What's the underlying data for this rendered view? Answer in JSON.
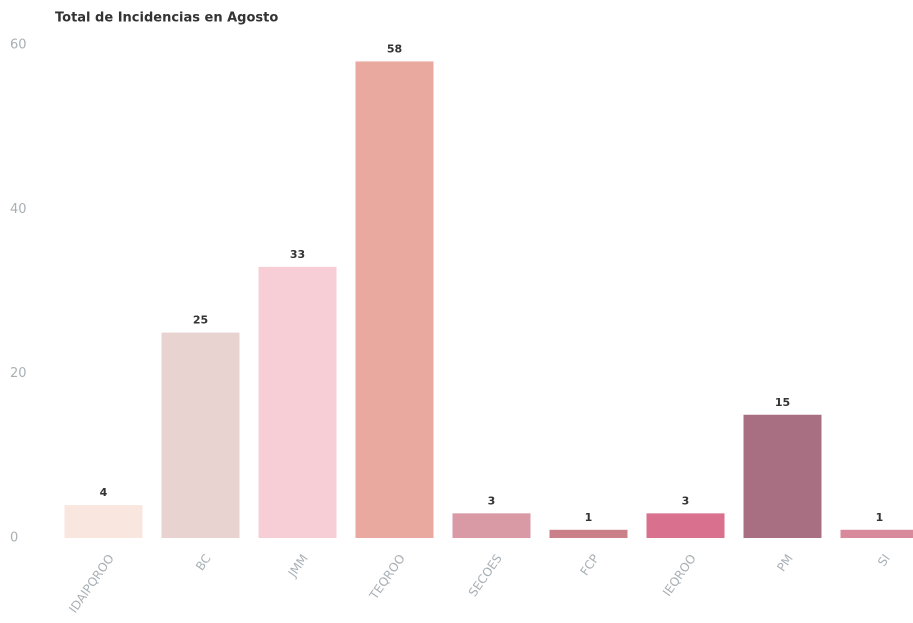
{
  "chart_data": {
    "type": "bar",
    "title": "Total de Incidencias en Agosto",
    "categories": [
      "IDAIPQROO",
      "BC",
      "JMM",
      "TEQROO",
      "SECOES",
      "FCP",
      "IEQROO",
      "PM",
      "SI"
    ],
    "values": [
      4,
      25,
      33,
      58,
      3,
      1,
      3,
      15,
      1
    ],
    "colors": [
      "#f8e6df",
      "#e8d3d1",
      "#f7cdd6",
      "#eaa99e",
      "#d99aa6",
      "#c98088",
      "#d9708e",
      "#a86f83",
      "#d9899c"
    ],
    "ylim": [
      0,
      60
    ],
    "yticks": [
      0,
      20,
      40,
      60
    ],
    "grid": false
  }
}
